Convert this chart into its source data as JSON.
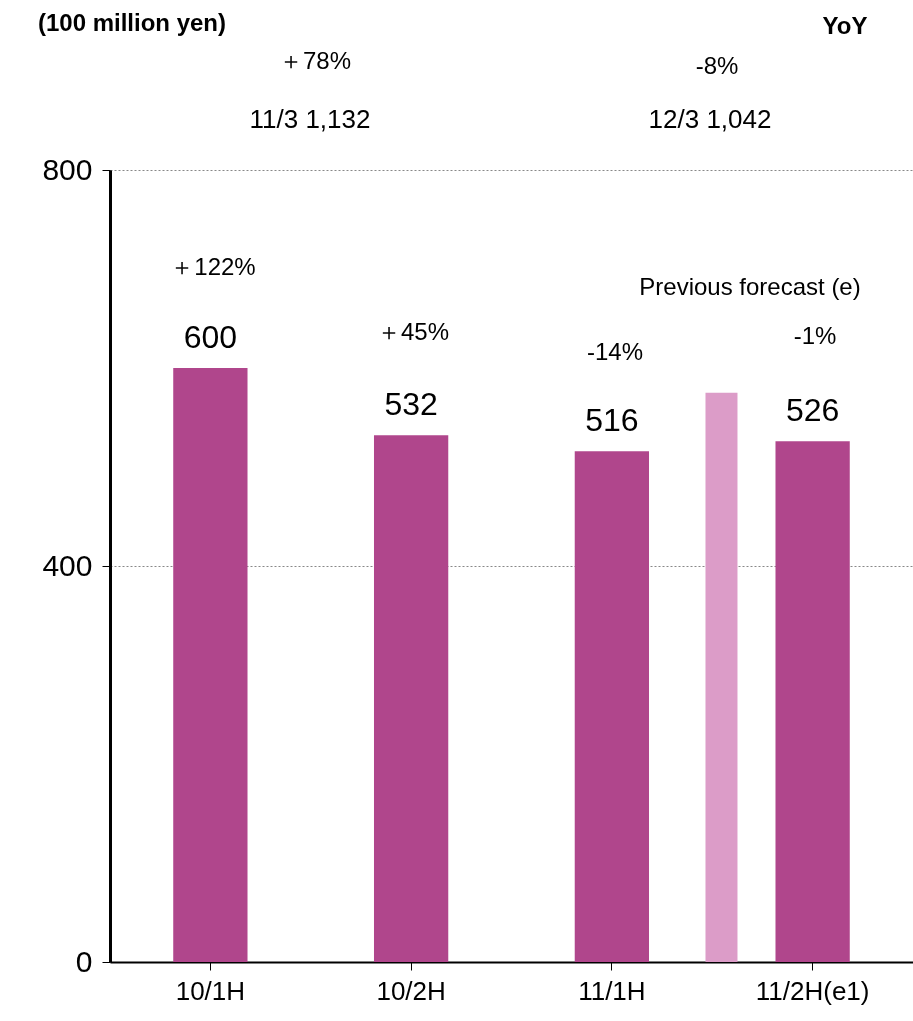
{
  "chart_data": {
    "type": "bar",
    "ylabel": "(100 million yen)",
    "categories": [
      "10/1H",
      "10/2H",
      "11/1H",
      "11/2H(e1)"
    ],
    "series": [
      {
        "color": "#b0468c",
        "values": [
          600,
          532,
          516,
          526
        ],
        "value_labels": [
          "600",
          "532",
          "516",
          "526"
        ]
      },
      {
        "name": "Previous forecast (e)",
        "color": "#dc9cc8",
        "values": [
          null,
          null,
          null,
          575
        ]
      }
    ],
    "ylim": [
      0,
      800
    ],
    "yticks": [
      0,
      400,
      800
    ],
    "grid": "y",
    "annotations": [
      "YoY",
      "＋78%",
      "11/3  1,132",
      "-8%",
      "12/3  1,042",
      "＋122%",
      "＋45%",
      "-14%",
      "-1%"
    ]
  }
}
